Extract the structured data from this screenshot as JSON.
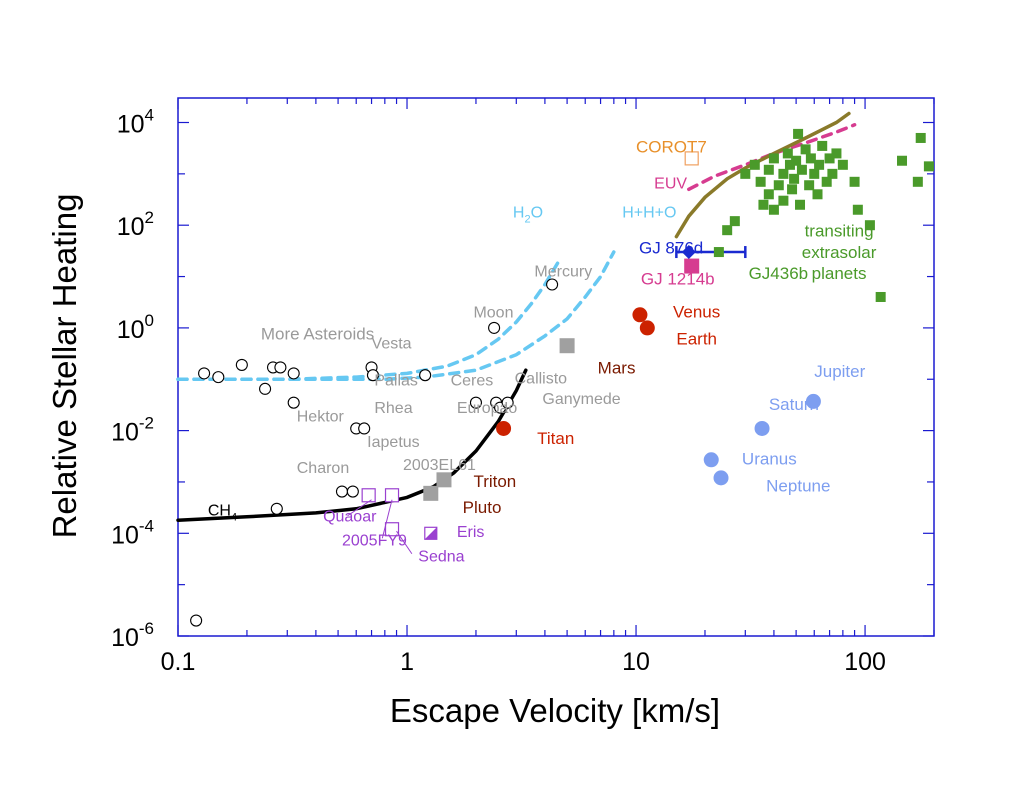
{
  "chart_data": {
    "type": "scatter",
    "xscale": "log",
    "yscale": "log",
    "xlim": [
      0.1,
      200
    ],
    "ylim": [
      1e-06,
      30000.0
    ],
    "xlabel": "Escape Velocity [km/s]",
    "ylabel": "Relative Stellar Heating",
    "grid": false,
    "legend": "none",
    "xticks": [
      {
        "value": 0.1,
        "label": "0.1"
      },
      {
        "value": 1,
        "label": "1"
      },
      {
        "value": 10,
        "label": "10"
      },
      {
        "value": 100,
        "label": "100"
      }
    ],
    "yticks": [
      {
        "value": 1e-06,
        "base": "10",
        "exp": "-6"
      },
      {
        "value": 0.0001,
        "base": "10",
        "exp": "-4"
      },
      {
        "value": 0.01,
        "base": "10",
        "exp": "-2"
      },
      {
        "value": 1,
        "base": "10",
        "exp": "0"
      },
      {
        "value": 100,
        "base": "10",
        "exp": "2"
      },
      {
        "value": 10000,
        "base": "10",
        "exp": "4"
      }
    ],
    "colors": {
      "black": "#000000",
      "gray": "#a0a0a0",
      "label_gray": "#9a9a9a",
      "red": "#cc2200",
      "darkred": "#7a1a00",
      "blue_planet": "#7d9ef0",
      "green": "#4a9a2a",
      "purple": "#9a40d0",
      "magenta": "#d63c90",
      "orange": "#f0a060",
      "orange_text": "#e8902a",
      "navy": "#1a2ad0",
      "cyan": "#66c8f2",
      "olive": "#8a7a2a",
      "frame": "#1a1ad0"
    },
    "curves": [
      {
        "label_base": "CH",
        "label_sub": "4",
        "color": "#000000",
        "style": "solid",
        "points": [
          [
            0.1,
            0.00018
          ],
          [
            0.2,
            0.00021
          ],
          [
            0.4,
            0.00025
          ],
          [
            0.6,
            0.0003
          ],
          [
            0.8,
            0.0004
          ],
          [
            1.0,
            0.0005
          ],
          [
            1.3,
            0.0008
          ],
          [
            1.6,
            0.0015
          ],
          [
            2.0,
            0.004
          ],
          [
            2.5,
            0.015
          ],
          [
            3.0,
            0.06
          ],
          [
            3.3,
            0.15
          ]
        ]
      },
      {
        "label_base": "H",
        "label_sub": "2",
        "label_tail": "O",
        "color": "#66c8f2",
        "style": "dashed",
        "points": [
          [
            0.1,
            0.1
          ],
          [
            0.3,
            0.1
          ],
          [
            0.6,
            0.11
          ],
          [
            1.0,
            0.13
          ],
          [
            1.5,
            0.18
          ],
          [
            2.0,
            0.3
          ],
          [
            2.5,
            0.6
          ],
          [
            3.0,
            1.3
          ],
          [
            3.5,
            3
          ],
          [
            4.0,
            7
          ],
          [
            4.6,
            20
          ]
        ]
      },
      {
        "label": "H+H+O",
        "color": "#66c8f2",
        "style": "dashed",
        "points": [
          [
            0.1,
            0.1
          ],
          [
            0.4,
            0.1
          ],
          [
            0.8,
            0.1
          ],
          [
            1.2,
            0.11
          ],
          [
            2.0,
            0.15
          ],
          [
            3.0,
            0.3
          ],
          [
            4.0,
            0.7
          ],
          [
            5.0,
            1.5
          ],
          [
            6.0,
            4
          ],
          [
            7.0,
            10
          ],
          [
            8.0,
            30
          ]
        ]
      },
      {
        "label": "EUV",
        "color": "#d63c90",
        "style": "dashed",
        "points": [
          [
            17,
            500
          ],
          [
            22,
            900
          ],
          [
            30,
            1500
          ],
          [
            40,
            2500
          ],
          [
            55,
            4000
          ],
          [
            75,
            6500
          ],
          [
            90,
            9000
          ]
        ]
      },
      {
        "color": "#8a7a2a",
        "style": "solid",
        "points": [
          [
            15,
            60
          ],
          [
            17,
            150
          ],
          [
            20,
            350
          ],
          [
            25,
            800
          ],
          [
            30,
            1300
          ],
          [
            40,
            2500
          ],
          [
            55,
            5000
          ],
          [
            75,
            10000
          ],
          [
            85,
            15000
          ]
        ]
      }
    ],
    "points": [
      {
        "x": 0.13,
        "y": 0.13,
        "color": "#000000",
        "shape": "circle-open"
      },
      {
        "x": 0.15,
        "y": 0.11,
        "color": "#000000",
        "shape": "circle-open"
      },
      {
        "x": 0.19,
        "y": 0.19,
        "color": "#000000",
        "shape": "circle-open"
      },
      {
        "x": 0.24,
        "y": 0.065,
        "color": "#000000",
        "shape": "circle-open"
      },
      {
        "x": 0.26,
        "y": 0.17,
        "color": "#000000",
        "shape": "circle-open"
      },
      {
        "x": 0.28,
        "y": 0.17,
        "color": "#000000",
        "shape": "circle-open"
      },
      {
        "x": 0.32,
        "y": 0.13,
        "color": "#000000",
        "shape": "circle-open"
      },
      {
        "x": 0.32,
        "y": 0.035,
        "color": "#000000",
        "shape": "circle-open"
      },
      {
        "x": 0.7,
        "y": 0.17,
        "color": "#000000",
        "shape": "circle-open"
      },
      {
        "x": 0.71,
        "y": 0.12,
        "color": "#000000",
        "shape": "circle-open"
      },
      {
        "x": 1.2,
        "y": 0.12,
        "color": "#000000",
        "shape": "circle-open"
      },
      {
        "x": 0.6,
        "y": 0.011,
        "color": "#000000",
        "shape": "circle-open"
      },
      {
        "x": 0.65,
        "y": 0.011,
        "color": "#000000",
        "shape": "circle-open"
      },
      {
        "x": 0.27,
        "y": 0.0003,
        "color": "#000000",
        "shape": "circle-open"
      },
      {
        "x": 0.52,
        "y": 0.00065,
        "color": "#000000",
        "shape": "circle-open"
      },
      {
        "x": 0.58,
        "y": 0.00065,
        "color": "#000000",
        "shape": "circle-open"
      },
      {
        "x": 0.12,
        "y": 2e-06,
        "color": "#000000",
        "shape": "circle-open"
      },
      {
        "x": 2.4,
        "y": 1.0,
        "color": "#000000",
        "shape": "circle-open"
      },
      {
        "x": 4.3,
        "y": 7,
        "color": "#000000",
        "shape": "circle-open"
      },
      {
        "x": 2.0,
        "y": 0.035,
        "color": "#000000",
        "shape": "circle-open"
      },
      {
        "x": 2.45,
        "y": 0.035,
        "color": "#000000",
        "shape": "circle-open"
      },
      {
        "x": 2.55,
        "y": 0.028,
        "color": "#000000",
        "shape": "circle-open"
      },
      {
        "x": 2.75,
        "y": 0.035,
        "color": "#000000",
        "shape": "circle-open"
      },
      {
        "x": 0.68,
        "y": 0.00055,
        "color": "#9a40d0",
        "shape": "square-open"
      },
      {
        "x": 0.86,
        "y": 0.00055,
        "color": "#9a40d0",
        "shape": "square-open"
      },
      {
        "x": 0.86,
        "y": 0.00012,
        "color": "#9a40d0",
        "shape": "square-open"
      },
      {
        "x": 1.27,
        "y": 0.0001,
        "color": "#9a40d0",
        "shape": "square-half"
      },
      {
        "x": 1.45,
        "y": 0.0011,
        "color": "#a0a0a0",
        "shape": "square-filled"
      },
      {
        "x": 1.27,
        "y": 0.0006,
        "color": "#a0a0a0",
        "shape": "square-filled"
      },
      {
        "x": 5.0,
        "y": 0.45,
        "color": "#a0a0a0",
        "shape": "square-filled"
      },
      {
        "x": 2.64,
        "y": 0.011,
        "color": "#cc2200",
        "shape": "circle-filled"
      },
      {
        "x": 10.4,
        "y": 1.8,
        "color": "#cc2200",
        "shape": "circle-filled"
      },
      {
        "x": 11.2,
        "y": 1.0,
        "color": "#cc2200",
        "shape": "circle-filled"
      },
      {
        "x": 35.5,
        "y": 0.011,
        "color": "#7d9ef0",
        "shape": "circle-filled"
      },
      {
        "x": 59.5,
        "y": 0.037,
        "color": "#7d9ef0",
        "shape": "circle-filled"
      },
      {
        "x": 21.3,
        "y": 0.0027,
        "color": "#7d9ef0",
        "shape": "circle-filled"
      },
      {
        "x": 23.5,
        "y": 0.0012,
        "color": "#7d9ef0",
        "shape": "circle-filled"
      },
      {
        "x": 17.5,
        "y": 2000,
        "color": "#f0a060",
        "shape": "square-open"
      },
      {
        "x": 17.5,
        "y": 16,
        "color": "#d63c90",
        "shape": "square-filled"
      },
      {
        "x": 17.0,
        "y": 30,
        "color": "#1a2ad0",
        "shape": "diamond",
        "xerr": [
          15,
          30
        ]
      },
      {
        "x": 23,
        "y": 30,
        "color": "#4a9a2a",
        "shape": "square-filled"
      },
      {
        "x": 25,
        "y": 80,
        "color": "#4a9a2a",
        "shape": "square-filled"
      },
      {
        "x": 27,
        "y": 120,
        "color": "#4a9a2a",
        "shape": "square-filled"
      },
      {
        "x": 30,
        "y": 1000,
        "color": "#4a9a2a",
        "shape": "square-filled"
      },
      {
        "x": 33,
        "y": 1500,
        "color": "#4a9a2a",
        "shape": "square-filled"
      },
      {
        "x": 35,
        "y": 700,
        "color": "#4a9a2a",
        "shape": "square-filled"
      },
      {
        "x": 36,
        "y": 250,
        "color": "#4a9a2a",
        "shape": "square-filled"
      },
      {
        "x": 38,
        "y": 400,
        "color": "#4a9a2a",
        "shape": "square-filled"
      },
      {
        "x": 38,
        "y": 1200,
        "color": "#4a9a2a",
        "shape": "square-filled"
      },
      {
        "x": 40,
        "y": 2000,
        "color": "#4a9a2a",
        "shape": "square-filled"
      },
      {
        "x": 40,
        "y": 200,
        "color": "#4a9a2a",
        "shape": "square-filled"
      },
      {
        "x": 42,
        "y": 600,
        "color": "#4a9a2a",
        "shape": "square-filled"
      },
      {
        "x": 44,
        "y": 1000,
        "color": "#4a9a2a",
        "shape": "square-filled"
      },
      {
        "x": 44,
        "y": 300,
        "color": "#4a9a2a",
        "shape": "square-filled"
      },
      {
        "x": 46,
        "y": 2500,
        "color": "#4a9a2a",
        "shape": "square-filled"
      },
      {
        "x": 47,
        "y": 1500,
        "color": "#4a9a2a",
        "shape": "square-filled"
      },
      {
        "x": 48,
        "y": 500,
        "color": "#4a9a2a",
        "shape": "square-filled"
      },
      {
        "x": 49,
        "y": 800,
        "color": "#4a9a2a",
        "shape": "square-filled"
      },
      {
        "x": 50,
        "y": 1800,
        "color": "#4a9a2a",
        "shape": "square-filled"
      },
      {
        "x": 51,
        "y": 6000,
        "color": "#4a9a2a",
        "shape": "square-filled"
      },
      {
        "x": 52,
        "y": 250,
        "color": "#4a9a2a",
        "shape": "square-filled"
      },
      {
        "x": 53,
        "y": 1200,
        "color": "#4a9a2a",
        "shape": "square-filled"
      },
      {
        "x": 55,
        "y": 3000,
        "color": "#4a9a2a",
        "shape": "square-filled"
      },
      {
        "x": 57,
        "y": 600,
        "color": "#4a9a2a",
        "shape": "square-filled"
      },
      {
        "x": 58,
        "y": 2000,
        "color": "#4a9a2a",
        "shape": "square-filled"
      },
      {
        "x": 60,
        "y": 1000,
        "color": "#4a9a2a",
        "shape": "square-filled"
      },
      {
        "x": 62,
        "y": 400,
        "color": "#4a9a2a",
        "shape": "square-filled"
      },
      {
        "x": 63,
        "y": 1500,
        "color": "#4a9a2a",
        "shape": "square-filled"
      },
      {
        "x": 65,
        "y": 3500,
        "color": "#4a9a2a",
        "shape": "square-filled"
      },
      {
        "x": 68,
        "y": 700,
        "color": "#4a9a2a",
        "shape": "square-filled"
      },
      {
        "x": 70,
        "y": 2000,
        "color": "#4a9a2a",
        "shape": "square-filled"
      },
      {
        "x": 72,
        "y": 1000,
        "color": "#4a9a2a",
        "shape": "square-filled"
      },
      {
        "x": 75,
        "y": 2500,
        "color": "#4a9a2a",
        "shape": "square-filled"
      },
      {
        "x": 80,
        "y": 1500,
        "color": "#4a9a2a",
        "shape": "square-filled"
      },
      {
        "x": 90,
        "y": 700,
        "color": "#4a9a2a",
        "shape": "square-filled"
      },
      {
        "x": 93,
        "y": 200,
        "color": "#4a9a2a",
        "shape": "square-filled"
      },
      {
        "x": 105,
        "y": 100,
        "color": "#4a9a2a",
        "shape": "square-filled"
      },
      {
        "x": 117,
        "y": 4,
        "color": "#4a9a2a",
        "shape": "square-filled"
      },
      {
        "x": 145,
        "y": 1800,
        "color": "#4a9a2a",
        "shape": "square-filled"
      },
      {
        "x": 170,
        "y": 700,
        "color": "#4a9a2a",
        "shape": "square-filled"
      },
      {
        "x": 175,
        "y": 5000,
        "color": "#4a9a2a",
        "shape": "square-filled"
      },
      {
        "x": 190,
        "y": 1400,
        "color": "#4a9a2a",
        "shape": "square-filled"
      }
    ],
    "annotations": [
      {
        "text": "More Asteroids",
        "x": 0.23,
        "y": 0.6,
        "color": "#9a9a9a",
        "size": "lg"
      },
      {
        "text": "Vesta",
        "x": 0.7,
        "y": 0.4,
        "color": "#9a9a9a"
      },
      {
        "text": "Pallas",
        "x": 0.72,
        "y": 0.075,
        "color": "#9a9a9a"
      },
      {
        "text": "Hektor",
        "x": 0.33,
        "y": 0.015,
        "color": "#9a9a9a"
      },
      {
        "text": "Rhea",
        "x": 0.72,
        "y": 0.022,
        "color": "#9a9a9a"
      },
      {
        "text": "Iapetus",
        "x": 0.67,
        "y": 0.0048,
        "color": "#9a9a9a"
      },
      {
        "text": "Ceres",
        "x": 1.55,
        "y": 0.075,
        "color": "#9a9a9a"
      },
      {
        "text": "Callisto",
        "x": 2.95,
        "y": 0.082,
        "color": "#9a9a9a"
      },
      {
        "text": "Europa",
        "x": 1.65,
        "y": 0.022,
        "color": "#9a9a9a"
      },
      {
        "text": "Io",
        "x": 2.65,
        "y": 0.022,
        "color": "#9a9a9a"
      },
      {
        "text": "Ganymede",
        "x": 3.9,
        "y": 0.033,
        "color": "#9a9a9a"
      },
      {
        "text": "Moon",
        "x": 1.95,
        "y": 1.6,
        "color": "#9a9a9a"
      },
      {
        "text": "Mercury",
        "x": 3.6,
        "y": 10,
        "color": "#9a9a9a"
      },
      {
        "text": "Charon",
        "x": 0.33,
        "y": 0.0015,
        "color": "#9a9a9a"
      },
      {
        "text": "2003EL61",
        "x": 0.96,
        "y": 0.0017,
        "color": "#9a9a9a",
        "size": "sm"
      },
      {
        "text": "Quaoar",
        "x": 0.43,
        "y": 0.00017,
        "color": "#9a40d0"
      },
      {
        "text": "2005FY9",
        "x": 0.52,
        "y": 5.8e-05,
        "color": "#9a40d0",
        "size": "sm"
      },
      {
        "text": "Sedna",
        "x": 1.12,
        "y": 2.8e-05,
        "color": "#9a40d0"
      },
      {
        "text": "Eris",
        "x": 1.65,
        "y": 8.5e-05,
        "color": "#9a40d0"
      },
      {
        "text": "Triton",
        "x": 1.95,
        "y": 0.0008,
        "color": "#7a1a00",
        "size": "lg"
      },
      {
        "text": "Pluto",
        "x": 1.75,
        "y": 0.00025,
        "color": "#7a1a00",
        "size": "lg"
      },
      {
        "text": "Titan",
        "x": 3.7,
        "y": 0.0055,
        "color": "#cc2200",
        "size": "lg"
      },
      {
        "text": "Mars",
        "x": 6.8,
        "y": 0.13,
        "color": "#7a1a00",
        "size": "lg"
      },
      {
        "text": "Venus",
        "x": 14.5,
        "y": 1.6,
        "color": "#cc2200",
        "size": "lg"
      },
      {
        "text": "Earth",
        "x": 15,
        "y": 0.48,
        "color": "#cc2200",
        "size": "lg"
      },
      {
        "text": "Jupiter",
        "x": 60,
        "y": 0.11,
        "color": "#7d9ef0",
        "size": "lg"
      },
      {
        "text": "Saturn",
        "x": 38,
        "y": 0.025,
        "color": "#7d9ef0",
        "size": "lg"
      },
      {
        "text": "Uranus",
        "x": 29,
        "y": 0.0022,
        "color": "#7d9ef0",
        "size": "lg"
      },
      {
        "text": "Neptune",
        "x": 37,
        "y": 0.00065,
        "color": "#7d9ef0",
        "size": "lg"
      },
      {
        "text": "COROT7",
        "x": 10,
        "y": 2600,
        "color": "#e8902a",
        "size": "lg"
      },
      {
        "text": "EUV",
        "x": 12,
        "y": 520,
        "color": "#d63c90"
      },
      {
        "text": "GJ 876d",
        "x": 10.3,
        "y": 28,
        "color": "#1a2ad0",
        "size": "lg"
      },
      {
        "text": "GJ 1214b",
        "x": 10.5,
        "y": 7,
        "color": "#d63c90",
        "size": "lg"
      },
      {
        "text": "GJ436b",
        "x": 31,
        "y": 9,
        "color": "#4a9a2a",
        "size": "lg"
      },
      {
        "text": "H+H+O",
        "x": 8.7,
        "y": 140,
        "color": "#66c8f2"
      },
      {
        "text": "transiting",
        "x": 77,
        "y": 60,
        "color": "#4a9a2a",
        "size": "lg"
      },
      {
        "text": "extrasolar",
        "x": 77,
        "y": 23,
        "color": "#4a9a2a",
        "size": "lg"
      },
      {
        "text": "planets",
        "x": 77,
        "y": 9,
        "color": "#4a9a2a",
        "size": "lg"
      }
    ]
  }
}
